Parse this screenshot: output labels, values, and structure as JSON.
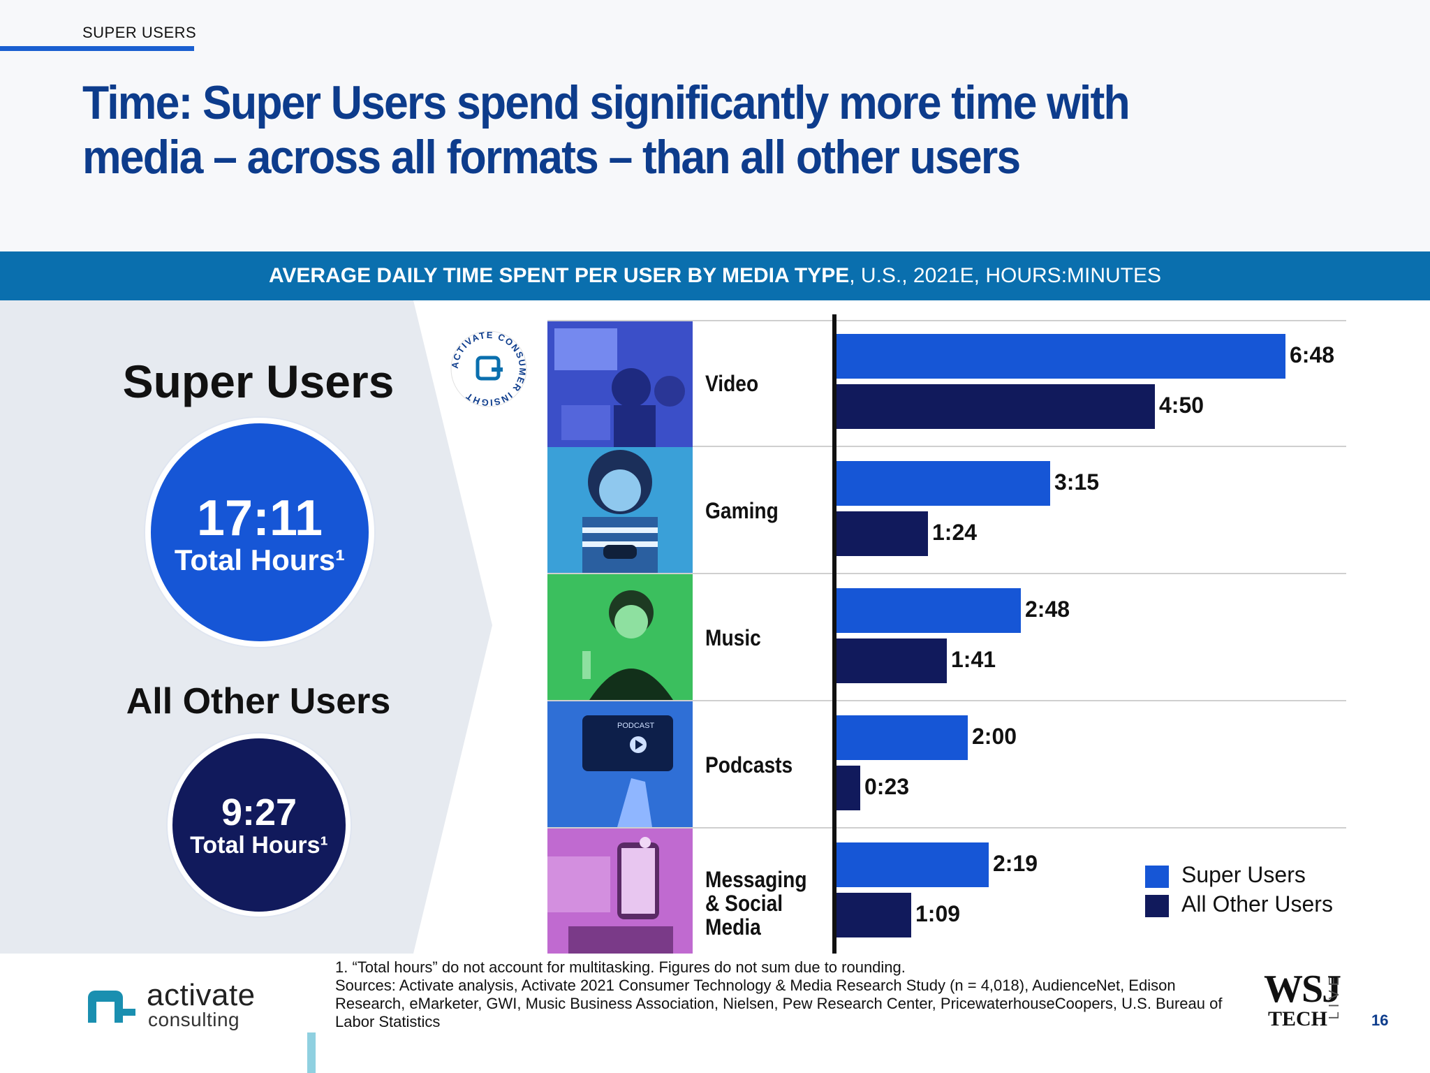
{
  "section_label": "SUPER USERS",
  "headline": "Time: Super Users spend significantly more time with media – across all formats – than all other users",
  "banner": {
    "bold": "AVERAGE DAILY TIME SPENT PER USER BY MEDIA TYPE",
    "rest": ", U.S., 2021E, HOURS:MINUTES"
  },
  "summary": {
    "super_title": "Super Users",
    "super_value": "17:11",
    "super_unit": "Total Hours¹",
    "other_title": "All Other Users",
    "other_value": "9:27",
    "other_unit": "Total Hours¹"
  },
  "seal_text": "ACTIVATE CONSUMER INSIGHT",
  "colors": {
    "super": "#1656d6",
    "other": "#111a5c",
    "banner": "#0a6fae",
    "headline": "#0d3c8c"
  },
  "chart_data": {
    "type": "bar",
    "orientation": "horizontal",
    "categories": [
      "Video",
      "Gaming",
      "Music",
      "Podcasts",
      "Messaging & Social Media"
    ],
    "series": [
      {
        "name": "Super Users",
        "values_minutes": [
          408,
          195,
          168,
          120,
          139
        ],
        "labels": [
          "6:48",
          "3:15",
          "2:48",
          "2:00",
          "2:19"
        ]
      },
      {
        "name": "All Other Users",
        "values_minutes": [
          290,
          84,
          101,
          23,
          69
        ],
        "labels": [
          "4:50",
          "1:24",
          "1:41",
          "0:23",
          "1:09"
        ]
      }
    ],
    "value_unit": "hours:minutes",
    "xlim_minutes": [
      0,
      420
    ],
    "legend_position": "bottom-right",
    "grid": false
  },
  "legend": [
    "Super Users",
    "All Other Users"
  ],
  "footer": {
    "note1": "1. “Total hours” do not account for multitasking. Figures do not sum due to rounding.",
    "sources": "Sources: Activate analysis, Activate 2021 Consumer Technology & Media Research Study (n = 4,018), AudienceNet, Edison Research, eMarketer, GWI, Music Business Association, Nielsen, Pew Research Center, PricewaterhouseCoopers, U.S. Bureau of Labor Statistics",
    "logo_name": "activate",
    "logo_sub": "consulting",
    "wsj": "WSJ",
    "wsj_tech": "TECH",
    "wsj_live": "LIVE",
    "page": "16"
  },
  "podcast_screen_text": "PODCAST"
}
